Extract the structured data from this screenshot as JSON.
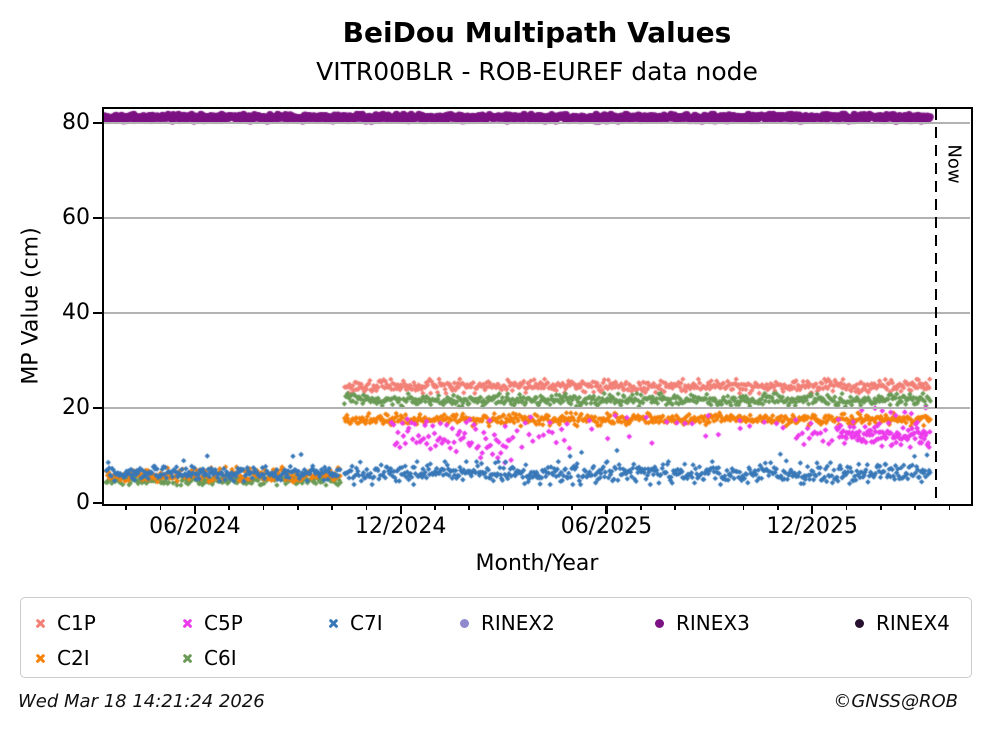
{
  "header": {
    "title": "BeiDou Multipath Values",
    "subtitle": "VITR00BLR - ROB-EUREF data node"
  },
  "footer": {
    "timestamp": "Wed Mar 18 14:21:24 2026",
    "credit": "©GNSS@ROB"
  },
  "chart_data": {
    "type": "scatter",
    "title": "BeiDou Multipath Values",
    "subtitle": "VITR00BLR - ROB-EUREF data node",
    "xlabel": "Month/Year",
    "ylabel": "MP Value (cm)",
    "x_unit": "months since 2024-01-01",
    "xlim": [
      2.35,
      27.6
    ],
    "ylim": [
      0,
      83
    ],
    "y_ticks": [
      0,
      20,
      40,
      60,
      80
    ],
    "x_major_ticks": [
      {
        "m": 5,
        "label": "06/2024"
      },
      {
        "m": 11,
        "label": "12/2024"
      },
      {
        "m": 17,
        "label": "06/2025"
      },
      {
        "m": 23,
        "label": "12/2025"
      }
    ],
    "x_minor": {
      "start": 3,
      "end": 27,
      "step": 1
    },
    "grid": {
      "y_values": [
        20,
        40,
        60,
        80
      ],
      "color": "#b2b2b2",
      "on": true
    },
    "now_line": {
      "m": 26.6,
      "label": "Now"
    },
    "legend": {
      "position": "bottom",
      "entries": [
        {
          "label": "C1P",
          "color": "#F28077",
          "marker": "x"
        },
        {
          "label": "C5P",
          "color": "#EC3BEC",
          "marker": "x"
        },
        {
          "label": "C7I",
          "color": "#3878B8",
          "marker": "x"
        },
        {
          "label": "RINEX2",
          "color": "#9189CE",
          "marker": "dot"
        },
        {
          "label": "RINEX3",
          "color": "#7C1283",
          "marker": "dot"
        },
        {
          "label": "RINEX4",
          "color": "#27102F",
          "marker": "dot"
        },
        {
          "label": "C2I",
          "color": "#F5820B",
          "marker": "x"
        },
        {
          "label": "C6I",
          "color": "#6B9B57",
          "marker": "x"
        }
      ]
    },
    "series": [
      {
        "name": "C1P",
        "color": "#F28077",
        "marker": "diamond",
        "size": 2.7,
        "segments": [
          {
            "m0": 9.35,
            "m1": 26.45,
            "n": 560,
            "mean": 24.6,
            "sd": 0.65
          }
        ]
      },
      {
        "name": "C6I",
        "color": "#6B9B57",
        "marker": "diamond",
        "size": 2.7,
        "segments": [
          {
            "m0": 2.4,
            "m1": 9.25,
            "n": 215,
            "mean": 4.8,
            "sd": 0.45
          },
          {
            "m0": 9.35,
            "m1": 26.45,
            "n": 560,
            "mean": 21.7,
            "sd": 0.6
          }
        ]
      },
      {
        "name": "C2I",
        "color": "#F5820B",
        "marker": "diamond",
        "size": 2.7,
        "segments": [
          {
            "m0": 2.4,
            "m1": 9.25,
            "n": 215,
            "mean": 6.0,
            "sd": 0.7
          },
          {
            "m0": 9.35,
            "m1": 26.45,
            "n": 560,
            "mean": 17.6,
            "sd": 0.6
          }
        ]
      },
      {
        "name": "C5P",
        "color": "#EC3BEC",
        "marker": "diamond",
        "size": 2.9,
        "segments": [
          {
            "m0": 10.7,
            "m1": 13.0,
            "n": 44,
            "mean": 14.0,
            "sd": 1.5,
            "clamp": [
              9.5,
              17.0
            ]
          },
          {
            "m0": 13.0,
            "m1": 14.3,
            "n": 26,
            "mean": 12.6,
            "sd": 1.9,
            "clamp": [
              8.5,
              16.5
            ]
          },
          {
            "m0": 14.3,
            "m1": 16.0,
            "n": 13,
            "mean": 13.8,
            "sd": 1.5
          },
          {
            "m0": 16.2,
            "m1": 22.4,
            "n": 11,
            "mean": 14.3,
            "sd": 1.6
          },
          {
            "m0": 22.5,
            "m1": 23.6,
            "n": 14,
            "mean": 14.0,
            "sd": 1.1
          },
          {
            "m0": 23.7,
            "m1": 26.45,
            "n": 100,
            "mean": 14.3,
            "sd": 1.1
          },
          {
            "m0": 10.8,
            "m1": 26.45,
            "n": 26,
            "mean": 17.3,
            "sd": 0.6
          },
          {
            "m0": 24.3,
            "m1": 26.4,
            "n": 7,
            "mean": 19.6,
            "sd": 0.5
          }
        ]
      },
      {
        "name": "C7I",
        "color": "#3878B8",
        "marker": "diamond",
        "size": 2.7,
        "segments": [
          {
            "m0": 2.4,
            "m1": 9.25,
            "n": 230,
            "mean": 6.3,
            "sd": 0.75,
            "clamp": [
              4.0,
              12.0
            ],
            "spike": {
              "p": 0.025,
              "lo": 2.0,
              "hi": 4.5
            }
          },
          {
            "m0": 9.35,
            "m1": 26.45,
            "n": 560,
            "mean": 6.3,
            "sd": 1.05,
            "clamp": [
              3.3,
              12.5
            ],
            "spike": {
              "p": 0.018,
              "lo": 2.5,
              "hi": 5.5
            }
          }
        ]
      },
      {
        "name": "RINEX3",
        "color": "#7C1283",
        "marker": "dot",
        "size": 3.6,
        "segments": [
          {
            "m0": 2.35,
            "m1": 26.45,
            "n": 1400,
            "mean": 81.2,
            "sd": 0.3
          }
        ]
      }
    ]
  }
}
